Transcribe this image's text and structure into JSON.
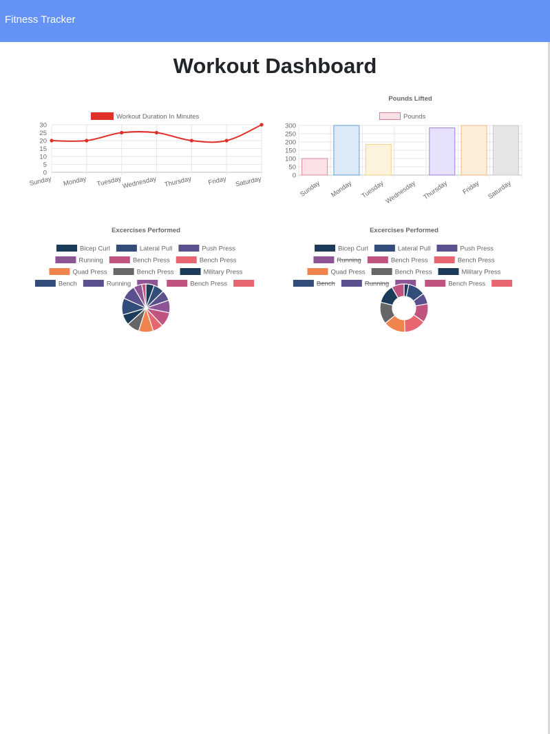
{
  "navbar": {
    "brand": "Fitness Tracker",
    "color": "#6593f5"
  },
  "page": {
    "title": "Workout Dashboard"
  },
  "chart_data": [
    {
      "type": "line",
      "title": "",
      "legend": [
        {
          "name": "Workout Duration In Minutes",
          "color": "#e0302a"
        }
      ],
      "categories": [
        "Sunday",
        "Monday",
        "Tuesday",
        "Wednesday",
        "Thursday",
        "Friday",
        "Saturday"
      ],
      "series": [
        {
          "name": "Workout Duration In Minutes",
          "values": [
            20,
            20,
            25,
            25,
            20,
            20,
            30
          ],
          "color": "#e0302a"
        }
      ],
      "yticks": [
        "0",
        "5",
        "10",
        "15",
        "20",
        "25",
        "30"
      ],
      "ylim": [
        0,
        30
      ],
      "grid": true,
      "legend_position": "top"
    },
    {
      "type": "bar",
      "title": "Pounds Lifted",
      "legend": [
        {
          "name": "Pounds",
          "color": "#e07a92"
        }
      ],
      "categories": [
        "Sunday",
        "Monday",
        "Tuesday",
        "Wednesday",
        "Thursday",
        "Friday",
        "Saturday"
      ],
      "series": [
        {
          "name": "Pounds",
          "values": [
            100,
            300,
            185,
            0,
            285,
            300,
            300
          ]
        }
      ],
      "bar_fills": [
        "#fbe2e7",
        "#dceaf8",
        "#fdf3dc",
        "#eef2f6",
        "#e8e1fb",
        "#fdeedc",
        "#e5e5e5"
      ],
      "bar_strokes": [
        "#e3879a",
        "#5ea0d8",
        "#f3d17e",
        "#c5ccd3",
        "#9b7fe3",
        "#f3b77a",
        "#c9c9c9"
      ],
      "yticks": [
        "0",
        "50",
        "100",
        "150",
        "200",
        "250",
        "300"
      ],
      "ylim": [
        0,
        300
      ],
      "grid": true,
      "legend_position": "top"
    },
    {
      "type": "pie",
      "title": "Excercises Performed",
      "legend": [
        {
          "name": "Bicep Curl",
          "color": "#1c3a5a",
          "hidden": false
        },
        {
          "name": "Lateral Pull",
          "color": "#334d7a",
          "hidden": false
        },
        {
          "name": "Push Press",
          "color": "#5a508e",
          "hidden": false
        },
        {
          "name": "Running",
          "color": "#8d5496",
          "hidden": false
        },
        {
          "name": "Bench Press",
          "color": "#c05480",
          "hidden": false
        },
        {
          "name": "Bench Press",
          "color": "#e86670",
          "hidden": false
        },
        {
          "name": "Quad Press",
          "color": "#f0844f",
          "hidden": false
        },
        {
          "name": "Bench Press",
          "color": "#666666",
          "hidden": false
        },
        {
          "name": "Military Press",
          "color": "#1c3a5a",
          "hidden": false
        },
        {
          "name": "Bench",
          "color": "#334d7a",
          "hidden": false
        },
        {
          "name": "Running",
          "color": "#5a508e",
          "hidden": false
        },
        {
          "name": "",
          "color": "#8d5496",
          "hidden": false
        },
        {
          "name": "Bench Press",
          "color": "#c05480",
          "hidden": false
        },
        {
          "name": "",
          "color": "#e86670",
          "hidden": false
        }
      ],
      "slices": [
        {
          "color": "#1c3a5a",
          "value": 4
        },
        {
          "color": "#334d7a",
          "value": 5
        },
        {
          "color": "#5a508e",
          "value": 5
        },
        {
          "color": "#8d5496",
          "value": 6
        },
        {
          "color": "#c05480",
          "value": 7
        },
        {
          "color": "#e86670",
          "value": 5
        },
        {
          "color": "#f0844f",
          "value": 7
        },
        {
          "color": "#666666",
          "value": 6
        },
        {
          "color": "#1c3a5a",
          "value": 5
        },
        {
          "color": "#334d7a",
          "value": 8
        },
        {
          "color": "#5a508e",
          "value": 7
        },
        {
          "color": "#8d5496",
          "value": 4
        },
        {
          "color": "#c05480",
          "value": 2
        }
      ]
    },
    {
      "type": "pie",
      "title": "Excercises Performed",
      "donut": true,
      "legend": [
        {
          "name": "Bicep Curl",
          "color": "#1c3a5a",
          "hidden": false
        },
        {
          "name": "Lateral Pull",
          "color": "#334d7a",
          "hidden": false
        },
        {
          "name": "Push Press",
          "color": "#5a508e",
          "hidden": false
        },
        {
          "name": "Running",
          "color": "#8d5496",
          "hidden": true
        },
        {
          "name": "Bench Press",
          "color": "#c05480",
          "hidden": false
        },
        {
          "name": "Bench Press",
          "color": "#e86670",
          "hidden": false
        },
        {
          "name": "Quad Press",
          "color": "#f0844f",
          "hidden": false
        },
        {
          "name": "Bench Press",
          "color": "#666666",
          "hidden": false
        },
        {
          "name": "Military Press",
          "color": "#1c3a5a",
          "hidden": false
        },
        {
          "name": "Bench",
          "color": "#334d7a",
          "hidden": true
        },
        {
          "name": "Running",
          "color": "#5a508e",
          "hidden": true
        },
        {
          "name": "",
          "color": "#8d5496",
          "hidden": false
        },
        {
          "name": "Bench Press",
          "color": "#c05480",
          "hidden": false
        },
        {
          "name": "",
          "color": "#e86670",
          "hidden": false
        }
      ],
      "slices": [
        {
          "color": "#1c3a5a",
          "value": 3
        },
        {
          "color": "#334d7a",
          "value": 11
        },
        {
          "color": "#5a508e",
          "value": 7
        },
        {
          "color": "#c05480",
          "value": 12
        },
        {
          "color": "#e86670",
          "value": 14
        },
        {
          "color": "#f0844f",
          "value": 14
        },
        {
          "color": "#666666",
          "value": 14
        },
        {
          "color": "#1c3a5a",
          "value": 12
        },
        {
          "color": "#c05480",
          "value": 8
        }
      ]
    }
  ]
}
